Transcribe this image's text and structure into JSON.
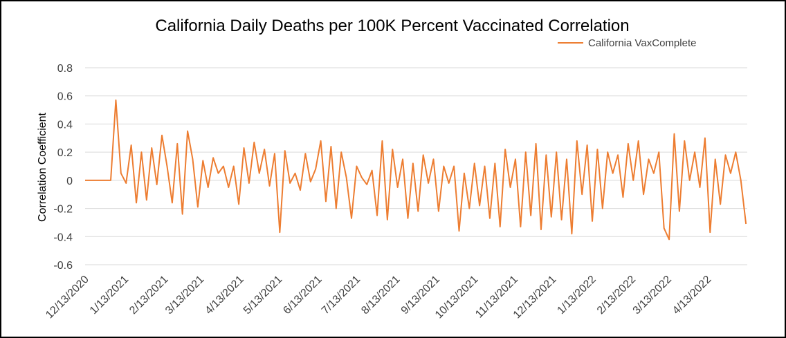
{
  "chart_data": {
    "type": "line",
    "title": "California Daily Deaths per 100K Percent Vaccinated Correlation",
    "y_label": "Correlation Coefficient",
    "legend": "top-right",
    "grid": true,
    "ylim": [
      -0.6,
      0.8
    ],
    "yticks": [
      -0.6,
      -0.4,
      -0.2,
      0,
      0.2,
      0.4,
      0.6,
      0.8
    ],
    "xlim": [
      "12/13/2020",
      "5/14/2022"
    ],
    "xticks": [
      "12/13/2020",
      "1/13/2021",
      "2/13/2021",
      "3/13/2021",
      "4/13/2021",
      "5/13/2021",
      "6/13/2021",
      "7/13/2021",
      "8/13/2021",
      "9/13/2021",
      "10/13/2021",
      "11/13/2021",
      "12/13/2021",
      "1/13/2022",
      "2/13/2022",
      "3/13/2022",
      "4/13/2022"
    ],
    "x": [
      "12/13/2020",
      "12/17/2020",
      "12/21/2020",
      "12/25/2020",
      "12/29/2020",
      "1/2/2021",
      "1/6/2021",
      "1/10/2021",
      "1/14/2021",
      "1/18/2021",
      "1/22/2021",
      "1/26/2021",
      "1/30/2021",
      "2/3/2021",
      "2/7/2021",
      "2/11/2021",
      "2/15/2021",
      "2/19/2021",
      "2/23/2021",
      "2/27/2021",
      "3/3/2021",
      "3/7/2021",
      "3/11/2021",
      "3/15/2021",
      "3/19/2021",
      "3/23/2021",
      "3/27/2021",
      "3/31/2021",
      "4/4/2021",
      "4/8/2021",
      "4/12/2021",
      "4/16/2021",
      "4/20/2021",
      "4/24/2021",
      "4/28/2021",
      "5/2/2021",
      "5/6/2021",
      "5/10/2021",
      "5/14/2021",
      "5/18/2021",
      "5/22/2021",
      "5/26/2021",
      "5/30/2021",
      "6/3/2021",
      "6/7/2021",
      "6/11/2021",
      "6/15/2021",
      "6/19/2021",
      "6/23/2021",
      "6/27/2021",
      "7/1/2021",
      "7/5/2021",
      "7/9/2021",
      "7/13/2021",
      "7/17/2021",
      "7/21/2021",
      "7/25/2021",
      "7/29/2021",
      "8/2/2021",
      "8/6/2021",
      "8/10/2021",
      "8/14/2021",
      "8/18/2021",
      "8/22/2021",
      "8/26/2021",
      "8/30/2021",
      "9/3/2021",
      "9/7/2021",
      "9/11/2021",
      "9/15/2021",
      "9/19/2021",
      "9/23/2021",
      "9/27/2021",
      "10/1/2021",
      "10/5/2021",
      "10/9/2021",
      "10/13/2021",
      "10/17/2021",
      "10/21/2021",
      "10/25/2021",
      "10/29/2021",
      "11/2/2021",
      "11/6/2021",
      "11/10/2021",
      "11/14/2021",
      "11/18/2021",
      "11/22/2021",
      "11/26/2021",
      "11/30/2021",
      "12/4/2021",
      "12/8/2021",
      "12/12/2021",
      "12/16/2021",
      "12/20/2021",
      "12/24/2021",
      "12/28/2021",
      "1/1/2022",
      "1/5/2022",
      "1/9/2022",
      "1/13/2022",
      "1/17/2022",
      "1/21/2022",
      "1/25/2022",
      "1/29/2022",
      "2/2/2022",
      "2/6/2022",
      "2/10/2022",
      "2/14/2022",
      "2/18/2022",
      "2/22/2022",
      "2/26/2022",
      "3/2/2022",
      "3/6/2022",
      "3/10/2022",
      "3/14/2022",
      "3/18/2022",
      "3/22/2022",
      "3/26/2022",
      "3/30/2022",
      "4/3/2022",
      "4/7/2022",
      "4/11/2022",
      "4/15/2022",
      "4/19/2022",
      "4/23/2022",
      "4/27/2022",
      "5/1/2022",
      "5/5/2022",
      "5/9/2022",
      "5/13/2022"
    ],
    "series": [
      {
        "name": "California VaxComplete",
        "color": "#ed7d31",
        "values": [
          0,
          0,
          0,
          0,
          0,
          0,
          0.57,
          0.05,
          -0.02,
          0.25,
          -0.16,
          0.2,
          -0.14,
          0.23,
          -0.03,
          0.32,
          0.1,
          -0.16,
          0.26,
          -0.24,
          0.35,
          0.15,
          -0.19,
          0.14,
          -0.05,
          0.16,
          0.05,
          0.1,
          -0.05,
          0.1,
          -0.17,
          0.23,
          -0.02,
          0.27,
          0.05,
          0.22,
          -0.04,
          0.19,
          -0.37,
          0.21,
          -0.02,
          0.05,
          -0.07,
          0.19,
          -0.01,
          0.08,
          0.28,
          -0.15,
          0.24,
          -0.2,
          0.2,
          0.02,
          -0.27,
          0.1,
          0.02,
          -0.03,
          0.07,
          -0.25,
          0.28,
          -0.28,
          0.22,
          -0.05,
          0.15,
          -0.27,
          0.12,
          -0.22,
          0.18,
          -0.02,
          0.15,
          -0.22,
          0.1,
          -0.02,
          0.1,
          -0.36,
          0.05,
          -0.2,
          0.12,
          -0.18,
          0.1,
          -0.27,
          0.12,
          -0.33,
          0.22,
          -0.05,
          0.15,
          -0.33,
          0.2,
          -0.25,
          0.26,
          -0.35,
          0.18,
          -0.26,
          0.2,
          -0.28,
          0.15,
          -0.38,
          0.28,
          -0.1,
          0.25,
          -0.29,
          0.22,
          -0.2,
          0.2,
          0.05,
          0.18,
          -0.12,
          0.26,
          0,
          0.28,
          -0.1,
          0.15,
          0.05,
          0.2,
          -0.34,
          -0.42,
          0.33,
          -0.22,
          0.28,
          0,
          0.2,
          -0.05,
          0.3,
          -0.37,
          0.15,
          -0.17,
          0.18,
          0.05,
          0.2,
          0,
          -0.31
        ]
      }
    ]
  }
}
